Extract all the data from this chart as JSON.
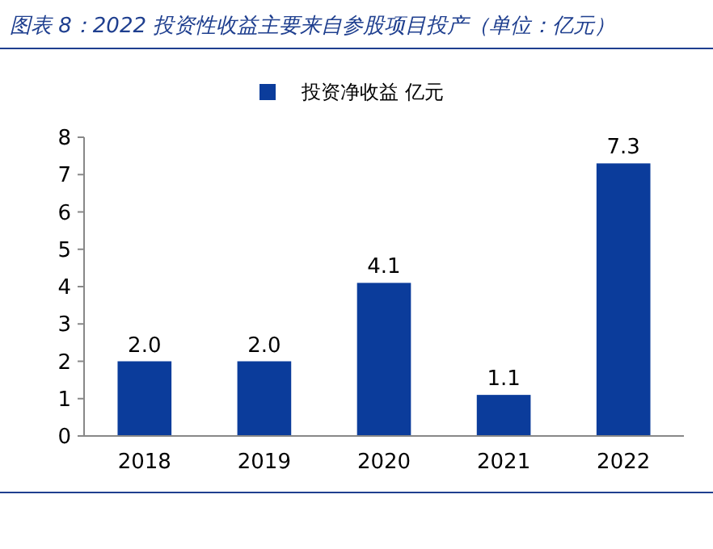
{
  "chart_data": {
    "type": "bar",
    "title": "图表 8：2022 投资性收益主要来自参股项目投产（单位：亿元）",
    "categories": [
      "2018",
      "2019",
      "2020",
      "2021",
      "2022"
    ],
    "series": [
      {
        "name": "投资净收益 亿元",
        "color": "#0b3c9b",
        "values": [
          2.0,
          2.0,
          4.1,
          1.1,
          7.3
        ],
        "value_labels": [
          "2.0",
          "2.0",
          "4.1",
          "1.1",
          "7.3"
        ]
      }
    ],
    "ylim": [
      0,
      8
    ],
    "yticks": [
      0,
      1,
      2,
      3,
      4,
      5,
      6,
      7,
      8
    ],
    "grid": false,
    "legend": "top"
  }
}
